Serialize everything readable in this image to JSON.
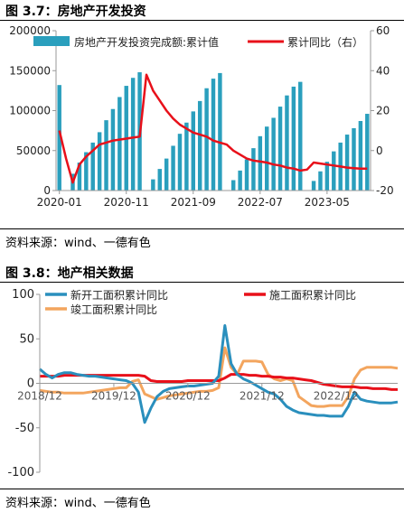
{
  "figure1": {
    "caption": "图 3.7：房地产开发投资",
    "source": "资料来源：wind、一德有色"
  },
  "figure2": {
    "caption": "图 3.8：地产相关数据",
    "source": "资料来源：wind、一德有色"
  },
  "chart_data": [
    {
      "type": "bar+line",
      "title": "",
      "series": [
        {
          "name": "房地产开发投资完成额:累计值",
          "type": "bar",
          "axis": "left",
          "color": "#2a9fbd",
          "values": [
            132000,
            null,
            21000,
            35000,
            48000,
            60000,
            73000,
            88000,
            102000,
            117000,
            131000,
            141000,
            148000,
            null,
            14000,
            27000,
            40000,
            56000,
            71000,
            85000,
            99000,
            112000,
            128000,
            140000,
            147000,
            null,
            13000,
            25000,
            39000,
            53000,
            68000,
            80000,
            91000,
            105000,
            119000,
            130000,
            136000,
            null,
            12000,
            24000,
            36000,
            49000,
            60000,
            70000,
            78000,
            87000,
            96000
          ]
        },
        {
          "name": "累计同比（右）",
          "type": "line",
          "axis": "right",
          "color": "#e8101a",
          "values": [
            10,
            -4,
            -16,
            -7,
            -3,
            0,
            3,
            4,
            5,
            5.5,
            6,
            6.5,
            7,
            38,
            30,
            25,
            20,
            16,
            13,
            11,
            9,
            8,
            7,
            5,
            4,
            3,
            0,
            -2,
            -4,
            -5,
            -5.5,
            -6,
            -7,
            -7.5,
            -8.5,
            -9,
            -10,
            -9.5,
            -6,
            -6.5,
            -7,
            -7.5,
            -8,
            -8.5,
            -8.8,
            -9,
            -9
          ]
        }
      ],
      "x_ticks": [
        "2020-01",
        "2020-11",
        "2021-09",
        "2022-07",
        "2023-05"
      ],
      "ylim_left": [
        0,
        200000
      ],
      "yticks_left": [
        0,
        50000,
        100000,
        150000,
        200000
      ],
      "ylim_right": [
        -20,
        60
      ],
      "yticks_right": [
        -20,
        0,
        20,
        40,
        60
      ],
      "legend": "top"
    },
    {
      "type": "line",
      "title": "",
      "series": [
        {
          "name": "新开工面积累计同比",
          "color": "#2a8fbd",
          "values": [
            16,
            10,
            6,
            10,
            12,
            12,
            10,
            9,
            8,
            8,
            7,
            6,
            5,
            4,
            3,
            0,
            -10,
            -44,
            -28,
            -15,
            -9,
            -6,
            -5,
            -4,
            -3,
            -3,
            -2,
            -1,
            0,
            8,
            65,
            22,
            10,
            5,
            2,
            -2,
            -6,
            -10,
            -12,
            -18,
            -26,
            -30,
            -33,
            -34,
            -35,
            -36,
            -36,
            -37,
            -37,
            -37,
            -26,
            -10,
            -18,
            -20,
            -21,
            -22,
            -22,
            -22,
            -21
          ]
        },
        {
          "name": "施工面积累计同比",
          "color": "#e8101a",
          "values": [
            8,
            8,
            8,
            8,
            9,
            9,
            9,
            9,
            9,
            9,
            9,
            9,
            9,
            9,
            9,
            9,
            9,
            8,
            3,
            2,
            2,
            2,
            2,
            2,
            3,
            3,
            3,
            3,
            3,
            3,
            6,
            10,
            10,
            10,
            9,
            9,
            8,
            8,
            7,
            7,
            6,
            6,
            5,
            4,
            3,
            1,
            -1,
            -2,
            -3,
            -4,
            -4,
            -4,
            -5,
            -5,
            -6,
            -6,
            -6,
            -7,
            -7
          ]
        },
        {
          "name": "竣工面积累计同比",
          "color": "#f3a55e",
          "values": [
            -8,
            -9,
            -10,
            -10,
            -11,
            -11,
            -11,
            -11,
            -10,
            -9,
            -8,
            -7,
            -6,
            -5,
            -5,
            2,
            4,
            -12,
            -15,
            -18,
            -16,
            -14,
            -13,
            -12,
            -11,
            -10,
            -9,
            -9,
            -8,
            -5,
            40,
            18,
            10,
            25,
            25,
            25,
            24,
            10,
            5,
            3,
            5,
            3,
            -15,
            -20,
            -25,
            -26,
            -26,
            -25,
            -25,
            -25,
            -15,
            5,
            15,
            18,
            18,
            18,
            18,
            18,
            17
          ]
        }
      ],
      "x_ticks": [
        "2018/12",
        "2019/12",
        "2020/12",
        "2021/12",
        "2022/12"
      ],
      "ylim": [
        -100,
        100
      ],
      "yticks": [
        -100,
        -50,
        0,
        50,
        100
      ],
      "legend": "top"
    }
  ]
}
